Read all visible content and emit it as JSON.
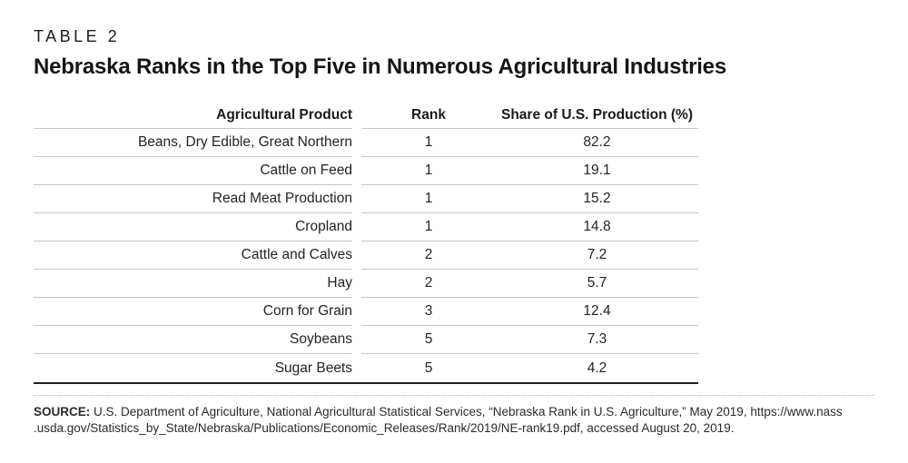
{
  "page": {
    "kicker": "TABLE 2",
    "title": "Nebraska Ranks in the Top Five in Numerous Agricultural Industries"
  },
  "table": {
    "columns": [
      "Agricultural Product",
      "Rank",
      "Share of U.S. Production (%)"
    ],
    "rows": [
      {
        "product": "Beans, Dry Edible, Great Northern",
        "rank": "1",
        "share": "82.2"
      },
      {
        "product": "Cattle on Feed",
        "rank": "1",
        "share": "19.1"
      },
      {
        "product": "Read Meat Production",
        "rank": "1",
        "share": "15.2"
      },
      {
        "product": "Cropland",
        "rank": "1",
        "share": "14.8"
      },
      {
        "product": "Cattle and Calves",
        "rank": "2",
        "share": "7.2"
      },
      {
        "product": "Hay",
        "rank": "2",
        "share": "5.7"
      },
      {
        "product": "Corn for Grain",
        "rank": "3",
        "share": "12.4"
      },
      {
        "product": "Soybeans",
        "rank": "5",
        "share": "7.3"
      },
      {
        "product": "Sugar Beets",
        "rank": "5",
        "share": "4.2"
      }
    ]
  },
  "source": {
    "label": "SOURCE:",
    "line1_rest": " U.S. Department of Agriculture, National Agricultural Statistical Services, “Nebraska Rank in U.S. Agriculture,” May 2019, https://www.nass",
    "line2": ".usda.gov/Statistics_by_State/Nebraska/Publications/Economic_Releases/Rank/2019/NE-rank19.pdf, accessed August 20, 2019."
  },
  "colors": {
    "text": "#1e1e1e",
    "rule_light": "#c6c6c6",
    "rule_dark": "#1f1f1f",
    "background": "#ffffff"
  },
  "chart_data": {
    "type": "table",
    "title": "Nebraska Ranks in the Top Five in Numerous Agricultural Industries",
    "columns": [
      "Agricultural Product",
      "Rank",
      "Share of U.S. Production (%)"
    ],
    "rows": [
      [
        "Beans, Dry Edible, Great Northern",
        1,
        82.2
      ],
      [
        "Cattle on Feed",
        1,
        19.1
      ],
      [
        "Read Meat Production",
        1,
        15.2
      ],
      [
        "Cropland",
        1,
        14.8
      ],
      [
        "Cattle and Calves",
        2,
        7.2
      ],
      [
        "Hay",
        2,
        5.7
      ],
      [
        "Corn for Grain",
        3,
        12.4
      ],
      [
        "Soybeans",
        5,
        7.3
      ],
      [
        "Sugar Beets",
        5,
        4.2
      ]
    ]
  }
}
